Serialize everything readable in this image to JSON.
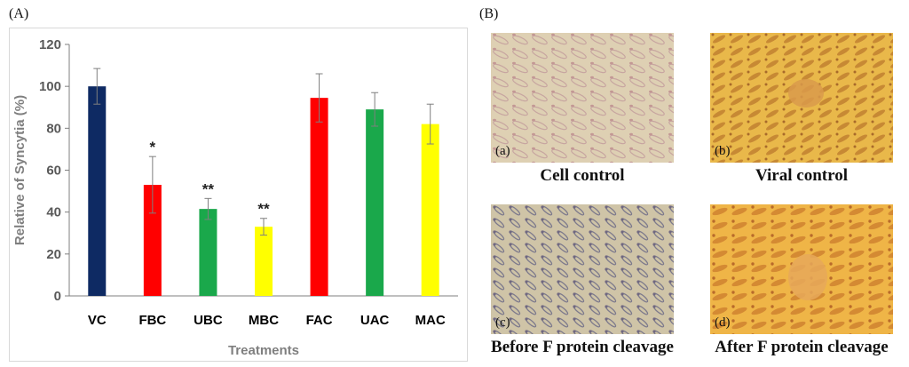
{
  "panel_a_label": "(A)",
  "panel_b_label": "(B)",
  "chart_data": {
    "type": "bar",
    "title": "",
    "xlabel": "Treatments",
    "ylabel": "Relative of  Syncytia (%)",
    "ylim": [
      0,
      120
    ],
    "yticks": [
      0,
      20,
      40,
      60,
      80,
      100,
      120
    ],
    "grid": false,
    "categories": [
      "VC",
      "FBC",
      "UBC",
      "MBC",
      "FAC",
      "UAC",
      "MAC"
    ],
    "values": [
      100,
      53,
      41.5,
      33,
      94.5,
      89,
      82
    ],
    "errors": [
      8.5,
      13.5,
      5,
      4,
      11.5,
      8,
      9.5
    ],
    "significance": [
      "",
      "*",
      "**",
      "**",
      "",
      "",
      ""
    ],
    "colors": [
      "#0e2a63",
      "#ff0000",
      "#1aa84b",
      "#ffff00",
      "#ff0000",
      "#1aa84b",
      "#ffff00"
    ]
  },
  "photos": [
    {
      "tag": "(a)",
      "caption": "Cell control"
    },
    {
      "tag": "(b)",
      "caption": "Viral control"
    },
    {
      "tag": "(c)",
      "caption": "Before F protein cleavage"
    },
    {
      "tag": "(d)",
      "caption": "After F protein cleavage"
    }
  ]
}
